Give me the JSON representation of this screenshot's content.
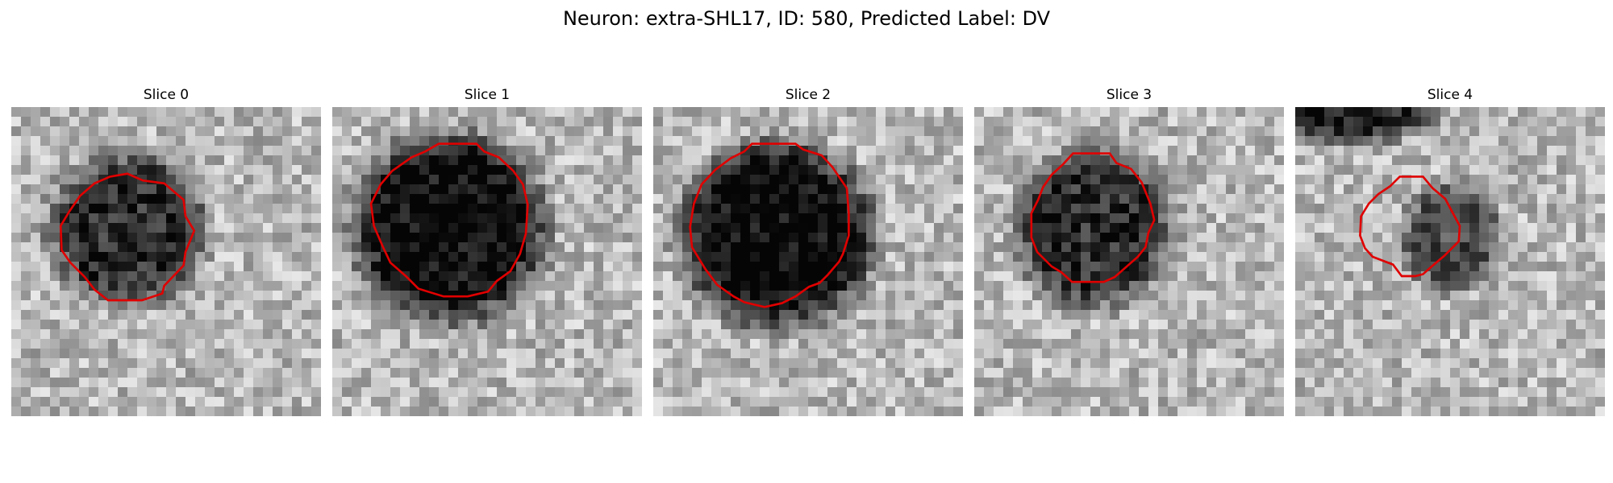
{
  "figure": {
    "title": "Neuron: extra-SHL17, ID: 580, Predicted Label: DV"
  },
  "panels": [
    {
      "title": "Slice 0",
      "contour_color": "#e00000"
    },
    {
      "title": "Slice 1",
      "contour_color": "#e00000"
    },
    {
      "title": "Slice 2",
      "contour_color": "#e00000"
    },
    {
      "title": "Slice 3",
      "contour_color": "#e00000"
    },
    {
      "title": "Slice 4",
      "contour_color": "#e00000"
    }
  ]
}
